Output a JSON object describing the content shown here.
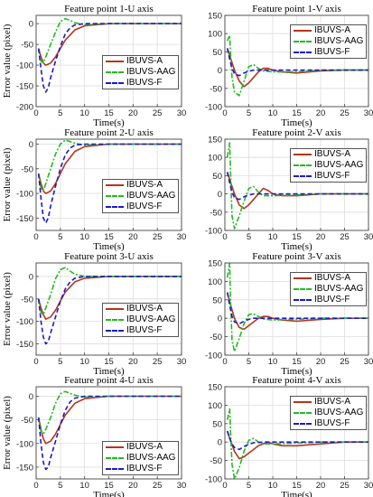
{
  "chart_data": [
    {
      "type": "line",
      "title": "Feature point 1-U axis",
      "xlabel": "Time(s)",
      "ylabel": "Error value (pixel)",
      "xlim": [
        0,
        30
      ],
      "ylim": [
        -200,
        20
      ],
      "xticks": [
        0,
        5,
        10,
        15,
        20,
        25,
        30
      ],
      "yticks": [
        -200,
        -150,
        -100,
        -50,
        0
      ],
      "grid": true,
      "legend_position": "center-right",
      "series": [
        {
          "name": "IBUVS-A",
          "x": [
            0.5,
            1,
            1.5,
            2,
            3,
            4,
            5,
            6,
            8,
            10,
            15,
            20,
            25,
            30
          ],
          "y": [
            -60,
            -80,
            -95,
            -100,
            -95,
            -80,
            -60,
            -40,
            -15,
            -5,
            0,
            0,
            0,
            0
          ]
        },
        {
          "name": "IBUVS-AAG",
          "x": [
            0.5,
            1,
            1.5,
            2,
            3,
            4,
            5,
            6,
            7,
            8,
            10,
            15,
            20,
            25,
            30
          ],
          "y": [
            -60,
            -90,
            -95,
            -80,
            -50,
            -20,
            5,
            12,
            8,
            2,
            -2,
            0,
            0,
            0,
            0
          ]
        },
        {
          "name": "IBUVS-F",
          "x": [
            0.5,
            1,
            1.5,
            2,
            2.5,
            3,
            4,
            5,
            6,
            7,
            8,
            10,
            15,
            20,
            25,
            30
          ],
          "y": [
            -60,
            -110,
            -150,
            -165,
            -155,
            -130,
            -90,
            -55,
            -25,
            -10,
            -3,
            0,
            0,
            0,
            0,
            0
          ]
        }
      ]
    },
    {
      "type": "line",
      "title": "Feature point 1-V axis",
      "xlabel": "Time(s)",
      "ylabel": "",
      "xlim": [
        0,
        30
      ],
      "ylim": [
        -100,
        150
      ],
      "xticks": [
        0,
        5,
        10,
        15,
        20,
        25,
        30
      ],
      "yticks": [
        -100,
        -50,
        0,
        50,
        100,
        150
      ],
      "grid": true,
      "legend_position": "top-right",
      "series": [
        {
          "name": "IBUVS-A",
          "x": [
            0.5,
            1,
            2,
            3,
            4,
            5,
            6,
            7,
            8,
            9,
            10,
            12,
            15,
            20,
            25,
            30
          ],
          "y": [
            60,
            40,
            0,
            -30,
            -45,
            -35,
            -20,
            -5,
            5,
            5,
            0,
            -5,
            -8,
            -2,
            0,
            0
          ]
        },
        {
          "name": "IBUVS-AAG",
          "x": [
            0.5,
            1,
            1.2,
            1.5,
            2,
            3,
            4,
            5,
            6,
            7,
            8,
            10,
            15,
            20,
            25,
            30
          ],
          "y": [
            80,
            95,
            40,
            -20,
            -60,
            -70,
            -30,
            10,
            15,
            5,
            -2,
            -5,
            -5,
            0,
            0,
            0
          ]
        },
        {
          "name": "IBUVS-F",
          "x": [
            0.5,
            1,
            1.5,
            2,
            3,
            4,
            5,
            6,
            8,
            10,
            15,
            20,
            25,
            30
          ],
          "y": [
            60,
            30,
            5,
            -10,
            -15,
            -8,
            -3,
            0,
            0,
            0,
            0,
            0,
            0,
            0
          ]
        }
      ]
    },
    {
      "type": "line",
      "title": "Feature point 2-U axis",
      "xlabel": "Time(s)",
      "ylabel": "Error value (pixel)",
      "xlim": [
        0,
        30
      ],
      "ylim": [
        -175,
        10
      ],
      "xticks": [
        0,
        5,
        10,
        15,
        20,
        25,
        30
      ],
      "yticks": [
        -150,
        -100,
        -50,
        0
      ],
      "grid": true,
      "legend_position": "center-right",
      "series": [
        {
          "name": "IBUVS-A",
          "x": [
            0.5,
            1,
            1.5,
            2,
            3,
            4,
            5,
            6,
            8,
            10,
            15,
            20,
            25,
            30
          ],
          "y": [
            -60,
            -80,
            -95,
            -100,
            -95,
            -80,
            -60,
            -40,
            -15,
            -5,
            0,
            0,
            0,
            0
          ]
        },
        {
          "name": "IBUVS-AAG",
          "x": [
            0.5,
            1,
            1.5,
            2,
            3,
            4,
            5,
            6,
            7,
            8,
            10,
            15,
            20,
            25,
            30
          ],
          "y": [
            -60,
            -90,
            -95,
            -80,
            -50,
            -20,
            0,
            8,
            5,
            2,
            -2,
            0,
            0,
            0,
            0
          ]
        },
        {
          "name": "IBUVS-F",
          "x": [
            0.5,
            1,
            1.5,
            2,
            2.5,
            3,
            4,
            5,
            6,
            7,
            8,
            10,
            15,
            20,
            25,
            30
          ],
          "y": [
            -60,
            -110,
            -150,
            -160,
            -150,
            -125,
            -85,
            -50,
            -22,
            -8,
            -2,
            0,
            0,
            0,
            0,
            0
          ]
        }
      ]
    },
    {
      "type": "line",
      "title": "Feature point 2-V axis",
      "xlabel": "Time(s)",
      "ylabel": "",
      "xlim": [
        0,
        30
      ],
      "ylim": [
        -100,
        150
      ],
      "xticks": [
        0,
        5,
        10,
        15,
        20,
        25,
        30
      ],
      "yticks": [
        -100,
        -50,
        0,
        50,
        100,
        150
      ],
      "grid": true,
      "legend_position": "top-right",
      "series": [
        {
          "name": "IBUVS-A",
          "x": [
            0.5,
            1,
            2,
            3,
            4,
            5,
            6,
            7,
            8,
            9,
            10,
            12,
            15,
            20,
            25,
            30
          ],
          "y": [
            60,
            40,
            0,
            -30,
            -40,
            -30,
            -15,
            0,
            15,
            10,
            0,
            -5,
            -5,
            0,
            0,
            0
          ]
        },
        {
          "name": "IBUVS-AAG",
          "x": [
            0.5,
            1,
            1.2,
            1.5,
            2,
            3,
            4,
            5,
            6,
            7,
            8,
            10,
            15,
            20,
            25,
            30
          ],
          "y": [
            100,
            140,
            50,
            -60,
            -95,
            -60,
            -20,
            15,
            20,
            5,
            -5,
            -5,
            -3,
            0,
            0,
            0
          ]
        },
        {
          "name": "IBUVS-F",
          "x": [
            0.5,
            1,
            1.5,
            2,
            3,
            4,
            5,
            6,
            8,
            10,
            15,
            20,
            25,
            30
          ],
          "y": [
            60,
            30,
            5,
            -10,
            -15,
            -8,
            -3,
            0,
            0,
            0,
            0,
            0,
            0,
            0
          ]
        }
      ]
    },
    {
      "type": "line",
      "title": "Feature point 3-U axis",
      "xlabel": "Time(s)",
      "ylabel": "Error value (pixel)",
      "xlim": [
        0,
        30
      ],
      "ylim": [
        -175,
        30
      ],
      "xticks": [
        0,
        5,
        10,
        15,
        20,
        25,
        30
      ],
      "yticks": [
        -150,
        -100,
        -50,
        0
      ],
      "grid": true,
      "legend_position": "center-right",
      "series": [
        {
          "name": "IBUVS-A",
          "x": [
            0.5,
            1,
            1.5,
            2,
            3,
            4,
            5,
            6,
            8,
            10,
            15,
            20,
            25,
            30
          ],
          "y": [
            -50,
            -70,
            -85,
            -95,
            -90,
            -75,
            -55,
            -35,
            -12,
            -4,
            0,
            0,
            0,
            0
          ]
        },
        {
          "name": "IBUVS-AAG",
          "x": [
            0.5,
            1,
            1.5,
            2,
            3,
            4,
            5,
            6,
            7,
            8,
            10,
            15,
            20,
            25,
            30
          ],
          "y": [
            -50,
            -80,
            -85,
            -70,
            -40,
            -5,
            15,
            20,
            12,
            5,
            0,
            0,
            0,
            0,
            0
          ]
        },
        {
          "name": "IBUVS-F",
          "x": [
            0.5,
            1,
            1.5,
            2,
            2.5,
            3,
            4,
            5,
            6,
            7,
            8,
            10,
            15,
            20,
            25,
            30
          ],
          "y": [
            -50,
            -100,
            -135,
            -150,
            -145,
            -125,
            -90,
            -55,
            -28,
            -12,
            -4,
            0,
            0,
            0,
            0,
            0
          ]
        }
      ]
    },
    {
      "type": "line",
      "title": "Feature point 3-V axis",
      "xlabel": "Time(s)",
      "ylabel": "",
      "xlim": [
        0,
        30
      ],
      "ylim": [
        -100,
        150
      ],
      "xticks": [
        0,
        5,
        10,
        15,
        20,
        25,
        30
      ],
      "yticks": [
        -100,
        -50,
        0,
        50,
        100,
        150
      ],
      "grid": true,
      "legend_position": "top-right",
      "series": [
        {
          "name": "IBUVS-A",
          "x": [
            0.5,
            1,
            2,
            3,
            4,
            5,
            6,
            7,
            8,
            9,
            10,
            12,
            15,
            20,
            25,
            30
          ],
          "y": [
            70,
            45,
            0,
            -25,
            -30,
            -20,
            -10,
            0,
            5,
            5,
            0,
            -5,
            -8,
            -3,
            0,
            0
          ]
        },
        {
          "name": "IBUVS-AAG",
          "x": [
            0.5,
            1,
            1.2,
            1.5,
            2,
            3,
            4,
            5,
            6,
            7,
            8,
            10,
            15,
            20,
            25,
            30
          ],
          "y": [
            110,
            150,
            40,
            -60,
            -90,
            -55,
            -15,
            10,
            12,
            5,
            -2,
            -5,
            -3,
            0,
            0,
            0
          ]
        },
        {
          "name": "IBUVS-F",
          "x": [
            0.5,
            1,
            1.5,
            2,
            3,
            4,
            5,
            6,
            8,
            10,
            15,
            20,
            25,
            30
          ],
          "y": [
            70,
            35,
            5,
            -10,
            -15,
            -8,
            -3,
            0,
            0,
            0,
            0,
            0,
            0,
            0
          ]
        }
      ]
    },
    {
      "type": "line",
      "title": "Feature point 4-U axis",
      "xlabel": "Time(s)",
      "ylabel": "Error value (pixel)",
      "xlim": [
        0,
        30
      ],
      "ylim": [
        -175,
        20
      ],
      "xticks": [
        0,
        5,
        10,
        15,
        20,
        25,
        30
      ],
      "yticks": [
        -150,
        -100,
        -50,
        0
      ],
      "grid": true,
      "legend_position": "bottom-right",
      "series": [
        {
          "name": "IBUVS-A",
          "x": [
            0.5,
            1,
            1.5,
            2,
            3,
            4,
            5,
            6,
            8,
            10,
            15,
            20,
            25,
            30
          ],
          "y": [
            -45,
            -70,
            -90,
            -100,
            -95,
            -80,
            -60,
            -40,
            -15,
            -5,
            0,
            0,
            0,
            0
          ]
        },
        {
          "name": "IBUVS-AAG",
          "x": [
            0.5,
            1,
            1.5,
            2,
            3,
            4,
            5,
            6,
            7,
            8,
            10,
            15,
            20,
            25,
            30
          ],
          "y": [
            -45,
            -75,
            -80,
            -70,
            -45,
            -15,
            5,
            10,
            6,
            2,
            -2,
            0,
            0,
            0,
            0
          ]
        },
        {
          "name": "IBUVS-F",
          "x": [
            0.5,
            1,
            1.5,
            2,
            2.5,
            3,
            4,
            5,
            6,
            7,
            8,
            10,
            15,
            20,
            25,
            30
          ],
          "y": [
            -45,
            -100,
            -140,
            -155,
            -150,
            -130,
            -95,
            -60,
            -30,
            -12,
            -4,
            0,
            0,
            0,
            0,
            0
          ]
        }
      ]
    },
    {
      "type": "line",
      "title": "Feature point 4-V axis",
      "xlabel": "Time(s)",
      "ylabel": "",
      "xlim": [
        0,
        30
      ],
      "ylim": [
        -100,
        150
      ],
      "xticks": [
        0,
        5,
        10,
        15,
        20,
        25,
        30
      ],
      "yticks": [
        -100,
        -50,
        0,
        50,
        100,
        150
      ],
      "grid": true,
      "legend_position": "top-right",
      "series": [
        {
          "name": "IBUVS-A",
          "x": [
            0.5,
            1,
            2,
            3,
            4,
            5,
            6,
            7,
            8,
            9,
            10,
            12,
            15,
            20,
            25,
            30
          ],
          "y": [
            30,
            10,
            -25,
            -45,
            -40,
            -30,
            -20,
            -10,
            -5,
            0,
            -5,
            -10,
            -10,
            -5,
            0,
            0
          ]
        },
        {
          "name": "IBUVS-AAG",
          "x": [
            0.5,
            1,
            1.2,
            1.5,
            2,
            3,
            4,
            5,
            6,
            7,
            8,
            10,
            15,
            20,
            25,
            30
          ],
          "y": [
            60,
            90,
            20,
            -60,
            -100,
            -70,
            -25,
            5,
            10,
            0,
            -5,
            -5,
            -3,
            0,
            0,
            0
          ]
        },
        {
          "name": "IBUVS-F",
          "x": [
            0.5,
            1,
            1.5,
            2,
            3,
            4,
            5,
            6,
            8,
            10,
            15,
            20,
            25,
            30
          ],
          "y": [
            30,
            10,
            -5,
            -15,
            -20,
            -12,
            -6,
            -2,
            0,
            0,
            0,
            0,
            0,
            0
          ]
        }
      ]
    }
  ],
  "style": {
    "series_colors": [
      "#b5341e",
      "#22bb22",
      "#1a1acc"
    ],
    "series_dash": [
      "",
      "6,2,2,2",
      "5,3"
    ],
    "grid_color": "#dddddd",
    "axis_color": "#444444"
  }
}
